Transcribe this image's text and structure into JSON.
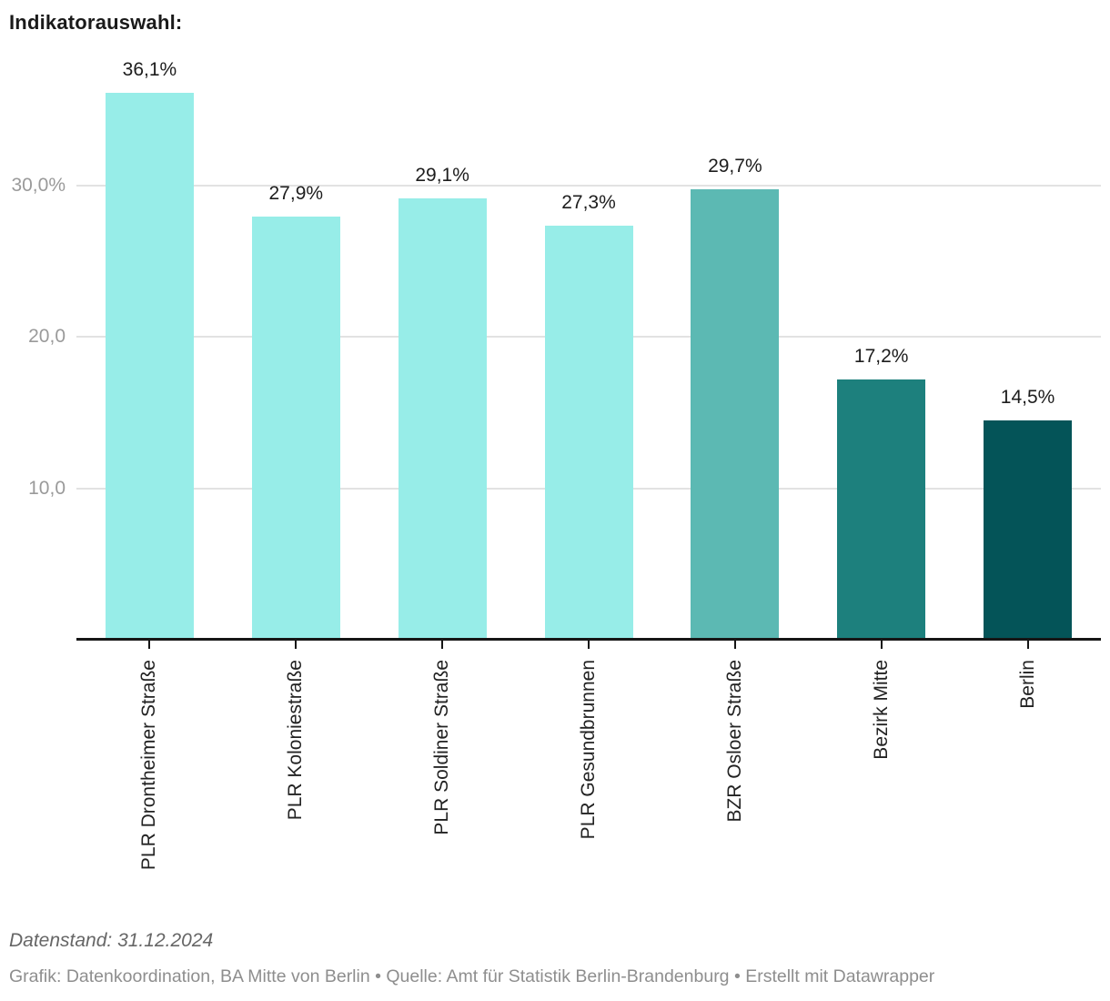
{
  "title": "Indikatorauswahl:",
  "chart_data": {
    "type": "bar",
    "categories": [
      "PLR Drontheimer Straße",
      "PLR Koloniestraße",
      "PLR Soldiner Straße",
      "PLR Gesundbrunnen",
      "BZR Osloer Straße",
      "Bezirk Mitte",
      "Berlin"
    ],
    "values": [
      36.1,
      27.9,
      29.1,
      27.3,
      29.7,
      17.2,
      14.5
    ],
    "value_labels": [
      "36,1%",
      "27,9%",
      "29,1%",
      "27,3%",
      "29,7%",
      "17,2%",
      "14,5%"
    ],
    "bar_colors": [
      "#97ede8",
      "#97ede8",
      "#97ede8",
      "#97ede8",
      "#5cb9b3",
      "#1d807d",
      "#045458"
    ],
    "y_ticks": [
      {
        "value": 10,
        "label": "10,0"
      },
      {
        "value": 20,
        "label": "20,0"
      },
      {
        "value": 30,
        "label": "30,0%"
      }
    ],
    "ylim": [
      0,
      37.2
    ],
    "grid": "horizontal",
    "legend": "none",
    "title": "Indikatorauswahl:",
    "xlabel": "",
    "ylabel": ""
  },
  "footer": {
    "datenstand": "Datenstand: 31.12.2024",
    "credits": "Grafik: Datenkoordination, BA Mitte von Berlin • Quelle: Amt für Statistik Berlin-Brandenburg • Erstellt mit Datawrapper"
  }
}
